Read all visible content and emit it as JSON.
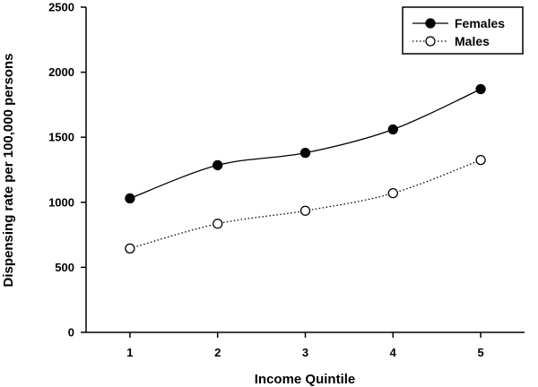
{
  "chart_data": {
    "type": "line",
    "xlabel": "Income Quintile",
    "ylabel": "Dispensing rate per 100,000 persons",
    "x": [
      1,
      2,
      3,
      4,
      5
    ],
    "x_tick_labels": [
      "1",
      "2",
      "3",
      "4",
      "5"
    ],
    "xlim": [
      0.5,
      5.5
    ],
    "ylim": [
      0,
      2500
    ],
    "y_ticks": [
      0,
      500,
      1000,
      1500,
      2000,
      2500
    ],
    "y_tick_labels": [
      "0",
      "500",
      "1000",
      "1500",
      "2000",
      "2500"
    ],
    "grid": false,
    "legend_position": "top-right",
    "series": [
      {
        "name": "Females",
        "values": [
          1030,
          1285,
          1380,
          1560,
          1870
        ],
        "marker": "filled-circle",
        "line_style": "solid",
        "color": "#000000"
      },
      {
        "name": "Males",
        "values": [
          645,
          835,
          935,
          1070,
          1325
        ],
        "marker": "open-circle",
        "line_style": "dotted",
        "color": "#000000"
      }
    ]
  }
}
